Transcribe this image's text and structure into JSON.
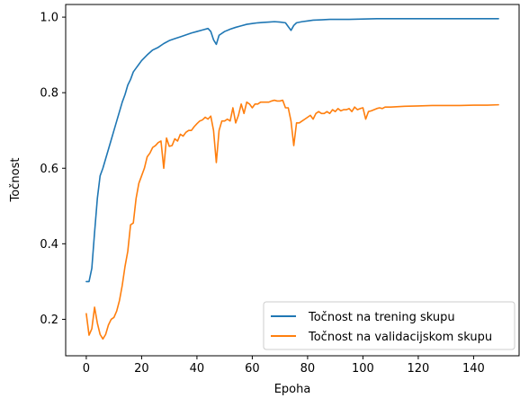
{
  "chart_data": {
    "type": "line",
    "xlabel": "Epoha",
    "ylabel": "Točnost",
    "xlim": [
      -7.45,
      156.45
    ],
    "ylim": [
      0.1035,
      1.0335
    ],
    "xticks": [
      0,
      20,
      40,
      60,
      80,
      100,
      120,
      140
    ],
    "yticks": [
      0.2,
      0.4,
      0.6,
      0.8,
      1.0
    ],
    "xtick_labels": [
      "0",
      "20",
      "40",
      "60",
      "80",
      "100",
      "120",
      "140"
    ],
    "ytick_labels": [
      "0.2",
      "0.4",
      "0.6",
      "0.8",
      "1.0"
    ],
    "grid": false,
    "legend_position": "lower-right",
    "series": [
      {
        "name": "Točnost na trening skupu",
        "color": "#1f77b4",
        "x": [
          0,
          1,
          2,
          3,
          4,
          5,
          6,
          7,
          8,
          9,
          10,
          11,
          12,
          13,
          14,
          15,
          16,
          17,
          18,
          19,
          20,
          22,
          24,
          26,
          28,
          30,
          32,
          34,
          36,
          38,
          40,
          42,
          44,
          45,
          46,
          47,
          48,
          50,
          52,
          54,
          56,
          58,
          60,
          62,
          64,
          66,
          68,
          70,
          72,
          73,
          74,
          75,
          76,
          78,
          80,
          82,
          85,
          88,
          90,
          95,
          100,
          105,
          110,
          120,
          130,
          140,
          149
        ],
        "y": [
          0.3,
          0.3,
          0.335,
          0.43,
          0.52,
          0.58,
          0.6,
          0.625,
          0.65,
          0.675,
          0.7,
          0.725,
          0.75,
          0.775,
          0.795,
          0.82,
          0.835,
          0.855,
          0.865,
          0.875,
          0.885,
          0.9,
          0.913,
          0.92,
          0.93,
          0.938,
          0.943,
          0.948,
          0.953,
          0.958,
          0.962,
          0.966,
          0.97,
          0.962,
          0.94,
          0.928,
          0.952,
          0.962,
          0.968,
          0.973,
          0.977,
          0.981,
          0.983,
          0.985,
          0.986,
          0.987,
          0.988,
          0.987,
          0.985,
          0.975,
          0.965,
          0.978,
          0.985,
          0.988,
          0.99,
          0.992,
          0.993,
          0.994,
          0.994,
          0.994,
          0.995,
          0.996,
          0.996,
          0.996,
          0.996,
          0.996,
          0.996
        ]
      },
      {
        "name": "Točnost na validacijskom skupu",
        "color": "#ff7f0e",
        "x": [
          0,
          1,
          2,
          3,
          4,
          5,
          6,
          7,
          8,
          9,
          10,
          11,
          12,
          13,
          14,
          15,
          16,
          17,
          18,
          19,
          20,
          21,
          22,
          23,
          24,
          25,
          26,
          27,
          28,
          29,
          30,
          31,
          32,
          33,
          34,
          35,
          36,
          37,
          38,
          39,
          40,
          41,
          42,
          43,
          44,
          45,
          46,
          47,
          48,
          49,
          50,
          51,
          52,
          53,
          54,
          55,
          56,
          57,
          58,
          59,
          60,
          61,
          62,
          63,
          64,
          65,
          66,
          67,
          68,
          69,
          70,
          71,
          72,
          73,
          74,
          75,
          76,
          77,
          78,
          79,
          80,
          81,
          82,
          83,
          84,
          85,
          86,
          87,
          88,
          89,
          90,
          91,
          92,
          93,
          94,
          95,
          96,
          97,
          98,
          99,
          100,
          101,
          102,
          103,
          104,
          105,
          106,
          107,
          108,
          110,
          115,
          120,
          125,
          130,
          135,
          140,
          145,
          149
        ],
        "y": [
          0.215,
          0.158,
          0.175,
          0.232,
          0.19,
          0.16,
          0.148,
          0.16,
          0.185,
          0.2,
          0.205,
          0.222,
          0.25,
          0.29,
          0.34,
          0.38,
          0.45,
          0.455,
          0.52,
          0.56,
          0.58,
          0.6,
          0.63,
          0.64,
          0.655,
          0.66,
          0.668,
          0.672,
          0.6,
          0.68,
          0.658,
          0.66,
          0.678,
          0.672,
          0.69,
          0.685,
          0.695,
          0.7,
          0.7,
          0.71,
          0.718,
          0.725,
          0.728,
          0.735,
          0.73,
          0.738,
          0.7,
          0.615,
          0.7,
          0.725,
          0.725,
          0.73,
          0.725,
          0.76,
          0.72,
          0.74,
          0.77,
          0.745,
          0.775,
          0.77,
          0.76,
          0.77,
          0.77,
          0.775,
          0.775,
          0.775,
          0.775,
          0.778,
          0.78,
          0.778,
          0.778,
          0.78,
          0.76,
          0.76,
          0.725,
          0.66,
          0.72,
          0.72,
          0.725,
          0.73,
          0.735,
          0.74,
          0.73,
          0.745,
          0.75,
          0.745,
          0.745,
          0.75,
          0.745,
          0.755,
          0.75,
          0.758,
          0.752,
          0.755,
          0.755,
          0.758,
          0.75,
          0.762,
          0.755,
          0.758,
          0.76,
          0.73,
          0.75,
          0.752,
          0.755,
          0.758,
          0.76,
          0.758,
          0.762,
          0.762,
          0.764,
          0.765,
          0.766,
          0.766,
          0.766,
          0.767,
          0.767,
          0.768
        ]
      }
    ]
  }
}
